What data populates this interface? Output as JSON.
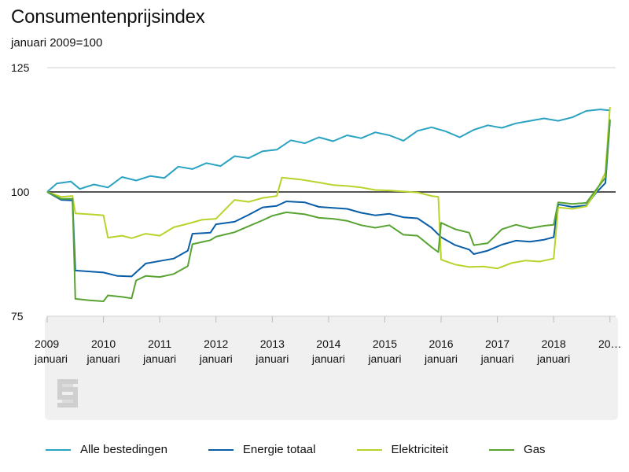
{
  "chart_data": {
    "type": "line",
    "title": "Consumentenprijsindex",
    "subtitle": "januari 2009=100",
    "ylim": [
      75,
      125
    ],
    "yticks": [
      "125",
      "100",
      "75"
    ],
    "reference_line": 100,
    "x_start": 2009,
    "x_end": 2019,
    "xticks": [
      {
        "year": "2009",
        "month": "januari"
      },
      {
        "year": "2010",
        "month": "januari"
      },
      {
        "year": "2011",
        "month": "januari"
      },
      {
        "year": "2012",
        "month": "januari"
      },
      {
        "year": "2013",
        "month": "januari"
      },
      {
        "year": "2014",
        "month": "januari"
      },
      {
        "year": "2015",
        "month": "januari"
      },
      {
        "year": "2016",
        "month": "januari"
      },
      {
        "year": "2017",
        "month": "januari"
      },
      {
        "year": "2018",
        "month": "januari"
      },
      {
        "year": "20…",
        "month": ""
      }
    ],
    "grid": false,
    "legend_position": "bottom",
    "series": [
      {
        "name": "Alle bestedingen",
        "color": "#2aa3c2",
        "points": [
          [
            2009,
            100.0
          ],
          [
            2009.17,
            101.7
          ],
          [
            2009.42,
            102.1
          ],
          [
            2009.58,
            100.6
          ],
          [
            2009.83,
            101.5
          ],
          [
            2010.08,
            100.9
          ],
          [
            2010.33,
            103.0
          ],
          [
            2010.58,
            102.3
          ],
          [
            2010.83,
            103.2
          ],
          [
            2011.08,
            102.8
          ],
          [
            2011.33,
            105.1
          ],
          [
            2011.58,
            104.6
          ],
          [
            2011.83,
            105.8
          ],
          [
            2012.08,
            105.2
          ],
          [
            2012.33,
            107.2
          ],
          [
            2012.58,
            106.8
          ],
          [
            2012.83,
            108.2
          ],
          [
            2013.08,
            108.5
          ],
          [
            2013.33,
            110.4
          ],
          [
            2013.58,
            109.8
          ],
          [
            2013.83,
            111.0
          ],
          [
            2014.08,
            110.2
          ],
          [
            2014.33,
            111.4
          ],
          [
            2014.58,
            110.8
          ],
          [
            2014.83,
            112.0
          ],
          [
            2015.08,
            111.4
          ],
          [
            2015.33,
            110.3
          ],
          [
            2015.58,
            112.3
          ],
          [
            2015.83,
            113.0
          ],
          [
            2016.08,
            112.2
          ],
          [
            2016.33,
            111.0
          ],
          [
            2016.58,
            112.5
          ],
          [
            2016.83,
            113.4
          ],
          [
            2017.08,
            112.9
          ],
          [
            2017.33,
            113.8
          ],
          [
            2017.58,
            114.3
          ],
          [
            2017.83,
            114.8
          ],
          [
            2018.08,
            114.3
          ],
          [
            2018.33,
            115.0
          ],
          [
            2018.58,
            116.3
          ],
          [
            2018.83,
            116.6
          ],
          [
            2019,
            116.4
          ]
        ]
      },
      {
        "name": "Energie totaal",
        "color": "#0a5ea8",
        "points": [
          [
            2009,
            100.0
          ],
          [
            2009.25,
            98.4
          ],
          [
            2009.45,
            98.3
          ],
          [
            2009.5,
            84.2
          ],
          [
            2009.75,
            84.0
          ],
          [
            2010.0,
            83.8
          ],
          [
            2010.25,
            83.1
          ],
          [
            2010.5,
            83.0
          ],
          [
            2010.75,
            85.6
          ],
          [
            2011.0,
            86.1
          ],
          [
            2011.25,
            86.6
          ],
          [
            2011.5,
            88.2
          ],
          [
            2011.58,
            91.6
          ],
          [
            2011.9,
            91.8
          ],
          [
            2012.0,
            93.5
          ],
          [
            2012.33,
            94.0
          ],
          [
            2012.58,
            95.4
          ],
          [
            2012.83,
            96.9
          ],
          [
            2013.08,
            97.2
          ],
          [
            2013.25,
            98.1
          ],
          [
            2013.58,
            97.9
          ],
          [
            2013.83,
            97.0
          ],
          [
            2014.08,
            96.8
          ],
          [
            2014.33,
            96.6
          ],
          [
            2014.58,
            95.8
          ],
          [
            2014.83,
            95.3
          ],
          [
            2015.08,
            95.6
          ],
          [
            2015.33,
            94.9
          ],
          [
            2015.58,
            94.7
          ],
          [
            2015.83,
            92.8
          ],
          [
            2016.0,
            90.9
          ],
          [
            2016.25,
            89.3
          ],
          [
            2016.5,
            88.4
          ],
          [
            2016.58,
            87.5
          ],
          [
            2016.83,
            88.2
          ],
          [
            2017.08,
            89.4
          ],
          [
            2017.33,
            90.2
          ],
          [
            2017.58,
            90.0
          ],
          [
            2017.83,
            90.4
          ],
          [
            2018.0,
            90.9
          ],
          [
            2018.08,
            97.5
          ],
          [
            2018.33,
            97.0
          ],
          [
            2018.58,
            97.3
          ],
          [
            2018.75,
            99.8
          ],
          [
            2018.92,
            101.8
          ],
          [
            2019,
            114.3
          ]
        ]
      },
      {
        "name": "Elektriciteit",
        "color": "#b9d22c",
        "points": [
          [
            2009,
            100.0
          ],
          [
            2009.25,
            99.0
          ],
          [
            2009.45,
            99.2
          ],
          [
            2009.5,
            95.7
          ],
          [
            2009.75,
            95.5
          ],
          [
            2010.0,
            95.3
          ],
          [
            2010.08,
            90.8
          ],
          [
            2010.33,
            91.2
          ],
          [
            2010.5,
            90.7
          ],
          [
            2010.75,
            91.6
          ],
          [
            2011.0,
            91.2
          ],
          [
            2011.25,
            92.9
          ],
          [
            2011.5,
            93.6
          ],
          [
            2011.75,
            94.4
          ],
          [
            2012.0,
            94.6
          ],
          [
            2012.33,
            98.4
          ],
          [
            2012.58,
            98.0
          ],
          [
            2012.83,
            98.8
          ],
          [
            2013.08,
            99.2
          ],
          [
            2013.17,
            102.9
          ],
          [
            2013.5,
            102.5
          ],
          [
            2013.83,
            101.9
          ],
          [
            2014.08,
            101.4
          ],
          [
            2014.33,
            101.2
          ],
          [
            2014.58,
            100.9
          ],
          [
            2014.83,
            100.4
          ],
          [
            2015.08,
            100.3
          ],
          [
            2015.33,
            100.1
          ],
          [
            2015.58,
            99.9
          ],
          [
            2015.83,
            99.2
          ],
          [
            2015.95,
            99.0
          ],
          [
            2016.0,
            86.4
          ],
          [
            2016.25,
            85.4
          ],
          [
            2016.5,
            84.9
          ],
          [
            2016.75,
            85.0
          ],
          [
            2017.0,
            84.6
          ],
          [
            2017.25,
            85.7
          ],
          [
            2017.5,
            86.2
          ],
          [
            2017.75,
            86.0
          ],
          [
            2018.0,
            86.6
          ],
          [
            2018.08,
            96.9
          ],
          [
            2018.33,
            96.6
          ],
          [
            2018.58,
            97.1
          ],
          [
            2018.75,
            100.0
          ],
          [
            2018.92,
            103.9
          ],
          [
            2019,
            117.1
          ]
        ]
      },
      {
        "name": "Gas",
        "color": "#59a333",
        "points": [
          [
            2009,
            100.0
          ],
          [
            2009.25,
            98.6
          ],
          [
            2009.45,
            98.6
          ],
          [
            2009.5,
            78.5
          ],
          [
            2009.75,
            78.2
          ],
          [
            2010.0,
            78.0
          ],
          [
            2010.08,
            79.2
          ],
          [
            2010.33,
            78.9
          ],
          [
            2010.5,
            78.6
          ],
          [
            2010.58,
            82.2
          ],
          [
            2010.75,
            83.1
          ],
          [
            2011.0,
            82.9
          ],
          [
            2011.25,
            83.5
          ],
          [
            2011.5,
            85.1
          ],
          [
            2011.58,
            89.5
          ],
          [
            2011.9,
            90.3
          ],
          [
            2012.0,
            91.0
          ],
          [
            2012.33,
            91.9
          ],
          [
            2012.58,
            93.1
          ],
          [
            2012.83,
            94.3
          ],
          [
            2013.0,
            95.2
          ],
          [
            2013.25,
            95.9
          ],
          [
            2013.58,
            95.5
          ],
          [
            2013.83,
            94.8
          ],
          [
            2014.08,
            94.6
          ],
          [
            2014.33,
            94.2
          ],
          [
            2014.58,
            93.3
          ],
          [
            2014.83,
            92.8
          ],
          [
            2015.08,
            93.3
          ],
          [
            2015.33,
            91.4
          ],
          [
            2015.58,
            91.2
          ],
          [
            2015.83,
            88.9
          ],
          [
            2015.95,
            87.9
          ],
          [
            2016.0,
            93.8
          ],
          [
            2016.25,
            92.5
          ],
          [
            2016.5,
            91.8
          ],
          [
            2016.58,
            89.3
          ],
          [
            2016.83,
            89.7
          ],
          [
            2017.08,
            92.5
          ],
          [
            2017.33,
            93.4
          ],
          [
            2017.58,
            92.7
          ],
          [
            2017.83,
            93.2
          ],
          [
            2018.0,
            93.4
          ],
          [
            2018.08,
            97.9
          ],
          [
            2018.33,
            97.6
          ],
          [
            2018.58,
            97.8
          ],
          [
            2018.75,
            100.4
          ],
          [
            2018.92,
            102.9
          ],
          [
            2019,
            114.6
          ]
        ]
      }
    ]
  }
}
